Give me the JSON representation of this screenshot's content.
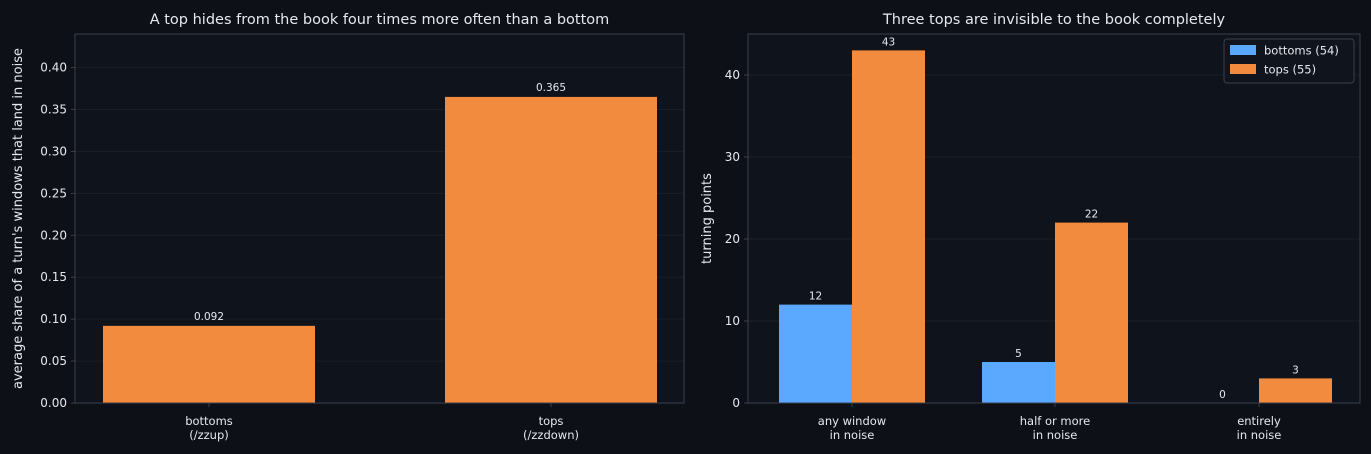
{
  "chart_data": [
    {
      "type": "bar",
      "title": "A top hides from the book four times more often than a bottom",
      "ylabel": "average share of a turn's windows that land in noise",
      "categories": [
        {
          "line1": "bottoms",
          "line2": "(/zzup)"
        },
        {
          "line1": "tops",
          "line2": "(/zzdown)"
        }
      ],
      "values": [
        0.092,
        0.365
      ],
      "value_labels": [
        "0.092",
        "0.365"
      ],
      "ylim": [
        0,
        0.44
      ],
      "yticks": [
        0,
        0.05,
        0.1,
        0.15,
        0.2,
        0.25,
        0.3,
        0.35,
        0.4
      ],
      "ytick_labels": [
        "0.00",
        "0.05",
        "0.10",
        "0.15",
        "0.20",
        "0.25",
        "0.30",
        "0.35",
        "0.40"
      ],
      "bar_color": "#f28b3e",
      "grid": true
    },
    {
      "type": "bar",
      "title": "Three tops are invisible to the book completely",
      "ylabel": "turning points",
      "categories": [
        {
          "line1": "any window",
          "line2": "in noise"
        },
        {
          "line1": "half or more",
          "line2": "in noise"
        },
        {
          "line1": "entirely",
          "line2": "in noise"
        }
      ],
      "series": [
        {
          "name": "bottoms (54)",
          "values": [
            12,
            5,
            0
          ],
          "color": "#5aa8ff"
        },
        {
          "name": "tops (55)",
          "values": [
            43,
            22,
            3
          ],
          "color": "#f28b3e"
        }
      ],
      "ylim": [
        0,
        45
      ],
      "yticks": [
        0,
        10,
        20,
        30,
        40
      ],
      "ytick_labels": [
        "0",
        "10",
        "20",
        "30",
        "40"
      ],
      "legend": "top-right",
      "grid": true
    }
  ],
  "colors": {
    "background": "#0d1017",
    "plot_background": "#0f131b",
    "axis": "#3a404c",
    "grid": "#1a1f28",
    "text": "#e6e8ee"
  }
}
